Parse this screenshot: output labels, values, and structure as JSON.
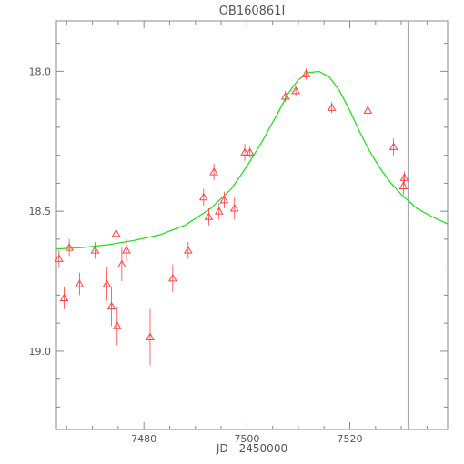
{
  "chart_data": {
    "type": "scatter",
    "title": "OB160861I",
    "xlabel": "JD - 2450000",
    "ylabel": "",
    "xlim": [
      7463,
      7539
    ],
    "ylim": [
      19.28,
      17.82
    ],
    "x_ticks": [
      7480,
      7500,
      7520
    ],
    "x_tick_labels": [
      "7480",
      "7500",
      "7520"
    ],
    "y_ticks": [
      18.0,
      18.5,
      19.0
    ],
    "y_tick_labels": [
      "18.0",
      "18.5",
      "19.0"
    ],
    "y_axis_inverted": true,
    "grid": false,
    "marker": "triangle",
    "colors": {
      "points": "#ff4040",
      "model": "#22e022",
      "vline": "#a0a0b8",
      "axis": "#888888"
    },
    "vertical_line_x": 7531.3,
    "points": [
      {
        "x": 7463.5,
        "y": 18.67,
        "err": 0.03
      },
      {
        "x": 7464.5,
        "y": 18.81,
        "err": 0.04
      },
      {
        "x": 7465.5,
        "y": 18.63,
        "err": 0.03
      },
      {
        "x": 7467.5,
        "y": 18.76,
        "err": 0.04
      },
      {
        "x": 7470.5,
        "y": 18.64,
        "err": 0.03
      },
      {
        "x": 7472.8,
        "y": 18.76,
        "err": 0.06
      },
      {
        "x": 7473.7,
        "y": 18.84,
        "err": 0.07
      },
      {
        "x": 7474.6,
        "y": 18.58,
        "err": 0.04
      },
      {
        "x": 7474.8,
        "y": 18.91,
        "err": 0.07
      },
      {
        "x": 7475.7,
        "y": 18.69,
        "err": 0.06
      },
      {
        "x": 7476.6,
        "y": 18.64,
        "err": 0.04
      },
      {
        "x": 7481.2,
        "y": 18.95,
        "err": 0.1
      },
      {
        "x": 7485.6,
        "y": 18.74,
        "err": 0.05
      },
      {
        "x": 7488.6,
        "y": 18.64,
        "err": 0.03
      },
      {
        "x": 7491.6,
        "y": 18.45,
        "err": 0.03
      },
      {
        "x": 7492.6,
        "y": 18.52,
        "err": 0.03
      },
      {
        "x": 7493.6,
        "y": 18.36,
        "err": 0.03
      },
      {
        "x": 7494.6,
        "y": 18.5,
        "err": 0.03
      },
      {
        "x": 7495.6,
        "y": 18.46,
        "err": 0.03
      },
      {
        "x": 7497.6,
        "y": 18.49,
        "err": 0.04
      },
      {
        "x": 7499.6,
        "y": 18.29,
        "err": 0.03
      },
      {
        "x": 7500.6,
        "y": 18.29,
        "err": 0.02
      },
      {
        "x": 7507.5,
        "y": 18.09,
        "err": 0.02
      },
      {
        "x": 7509.5,
        "y": 18.07,
        "err": 0.02
      },
      {
        "x": 7511.5,
        "y": 18.01,
        "err": 0.02
      },
      {
        "x": 7516.5,
        "y": 18.13,
        "err": 0.02
      },
      {
        "x": 7523.5,
        "y": 18.14,
        "err": 0.03
      },
      {
        "x": 7528.5,
        "y": 18.27,
        "err": 0.03
      },
      {
        "x": 7530.4,
        "y": 18.41,
        "err": 0.03
      },
      {
        "x": 7530.6,
        "y": 18.38,
        "err": 0.02
      }
    ],
    "model": {
      "t0": 7514.3,
      "peak_mag": 18.0,
      "model_x": [
        7463,
        7468,
        7473,
        7478,
        7483,
        7488,
        7493,
        7497,
        7500,
        7503,
        7506,
        7508,
        7510,
        7512,
        7514,
        7516,
        7518,
        7520,
        7522,
        7524,
        7526,
        7528,
        7530,
        7533,
        7536,
        7539
      ],
      "model_y": [
        18.635,
        18.63,
        18.62,
        18.605,
        18.585,
        18.55,
        18.49,
        18.42,
        18.34,
        18.25,
        18.15,
        18.08,
        18.03,
        18.005,
        18.0,
        18.02,
        18.07,
        18.14,
        18.22,
        18.29,
        18.35,
        18.4,
        18.44,
        18.49,
        18.52,
        18.545
      ]
    }
  }
}
